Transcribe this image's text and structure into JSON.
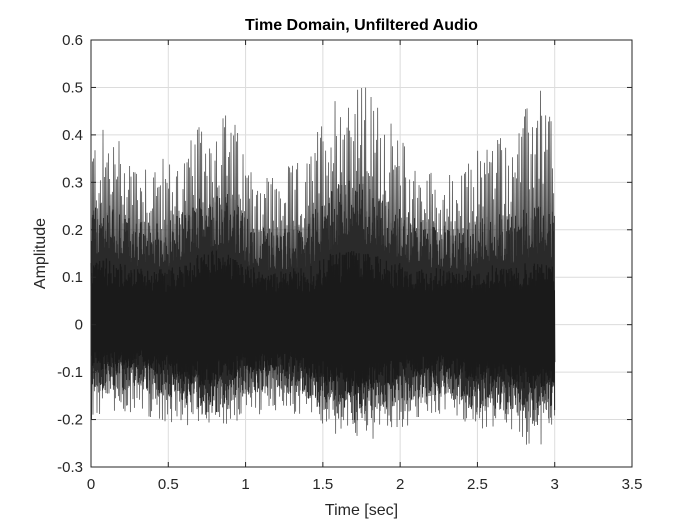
{
  "chart_data": {
    "type": "line",
    "title": "Time Domain, Unfiltered Audio",
    "xlabel": "Time [sec]",
    "ylabel": "Amplitude",
    "xlim": [
      0,
      3.5
    ],
    "ylim": [
      -0.3,
      0.6
    ],
    "xticks": [
      "0",
      "0.5",
      "1",
      "1.5",
      "2",
      "2.5",
      "3",
      "3.5"
    ],
    "yticks": [
      "-0.3",
      "-0.2",
      "-0.1",
      "0",
      "0.1",
      "0.2",
      "0.3",
      "0.4",
      "0.5",
      "0.6"
    ],
    "grid": true,
    "series": [
      {
        "signal_duration": 3.0,
        "color": "#1a1a1a",
        "envelope": {
          "t": [
            0.0,
            0.1,
            0.2,
            0.3,
            0.4,
            0.5,
            0.6,
            0.7,
            0.8,
            0.9,
            1.0,
            1.1,
            1.2,
            1.3,
            1.4,
            1.5,
            1.6,
            1.7,
            1.8,
            1.9,
            2.0,
            2.1,
            2.2,
            2.3,
            2.4,
            2.5,
            2.6,
            2.7,
            2.8,
            2.9,
            3.0
          ],
          "outer_max": [
            0.4,
            0.42,
            0.4,
            0.37,
            0.36,
            0.35,
            0.37,
            0.42,
            0.45,
            0.46,
            0.36,
            0.34,
            0.32,
            0.34,
            0.35,
            0.45,
            0.51,
            0.52,
            0.5,
            0.45,
            0.4,
            0.35,
            0.33,
            0.32,
            0.32,
            0.38,
            0.42,
            0.4,
            0.45,
            0.51,
            0.45
          ],
          "outer_min": [
            -0.2,
            -0.2,
            -0.19,
            -0.18,
            -0.2,
            -0.21,
            -0.21,
            -0.22,
            -0.22,
            -0.21,
            -0.2,
            -0.19,
            -0.18,
            -0.19,
            -0.2,
            -0.22,
            -0.24,
            -0.26,
            -0.25,
            -0.23,
            -0.22,
            -0.21,
            -0.2,
            -0.19,
            -0.21,
            -0.23,
            -0.22,
            -0.23,
            -0.25,
            -0.27,
            -0.23
          ],
          "mid_max": [
            0.25,
            0.26,
            0.24,
            0.22,
            0.22,
            0.22,
            0.24,
            0.27,
            0.29,
            0.28,
            0.23,
            0.21,
            0.2,
            0.21,
            0.22,
            0.27,
            0.3,
            0.31,
            0.3,
            0.27,
            0.25,
            0.23,
            0.22,
            0.21,
            0.2,
            0.22,
            0.24,
            0.23,
            0.25,
            0.27,
            0.24
          ],
          "mid_min": [
            -0.14,
            -0.15,
            -0.14,
            -0.13,
            -0.15,
            -0.16,
            -0.17,
            -0.19,
            -0.19,
            -0.17,
            -0.15,
            -0.14,
            -0.14,
            -0.15,
            -0.16,
            -0.18,
            -0.2,
            -0.21,
            -0.2,
            -0.18,
            -0.17,
            -0.16,
            -0.15,
            -0.15,
            -0.17,
            -0.19,
            -0.18,
            -0.19,
            -0.2,
            -0.22,
            -0.19
          ],
          "core_max": [
            0.13,
            0.14,
            0.13,
            0.12,
            0.12,
            0.12,
            0.13,
            0.15,
            0.16,
            0.15,
            0.13,
            0.12,
            0.11,
            0.12,
            0.12,
            0.14,
            0.16,
            0.16,
            0.15,
            0.14,
            0.13,
            0.12,
            0.12,
            0.12,
            0.11,
            0.12,
            0.13,
            0.12,
            0.13,
            0.14,
            0.12
          ],
          "core_min": [
            -0.09,
            -0.1,
            -0.1,
            -0.09,
            -0.1,
            -0.11,
            -0.12,
            -0.13,
            -0.13,
            -0.12,
            -0.1,
            -0.1,
            -0.1,
            -0.1,
            -0.11,
            -0.13,
            -0.14,
            -0.15,
            -0.14,
            -0.13,
            -0.12,
            -0.11,
            -0.11,
            -0.11,
            -0.12,
            -0.13,
            -0.13,
            -0.13,
            -0.14,
            -0.15,
            -0.13
          ]
        }
      }
    ]
  }
}
